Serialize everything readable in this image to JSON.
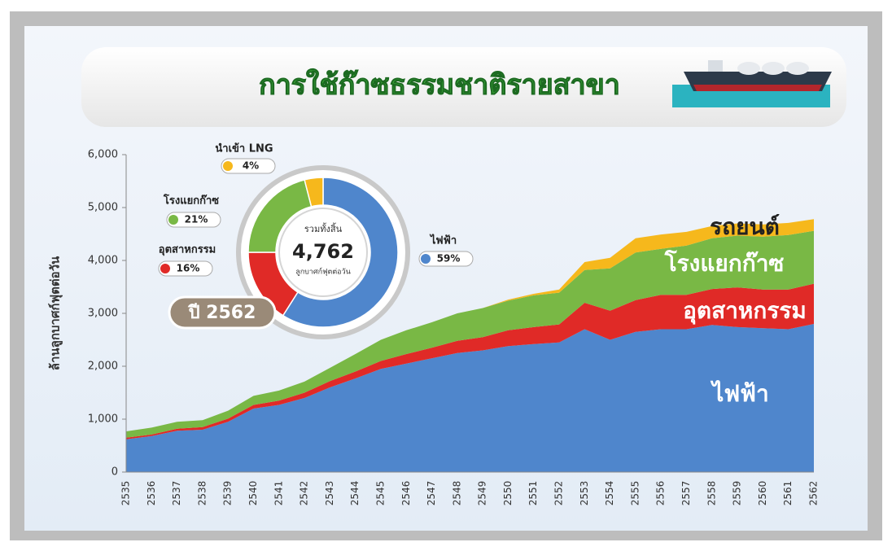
{
  "chart_data": [
    {
      "type": "stacked-area",
      "title": "การใช้ก๊าซธรรมชาติรายสาขา",
      "y_label": "ล้านลูกบาศก์ฟุตต่อวัน",
      "categories": [
        "2535",
        "2536",
        "2537",
        "2538",
        "2539",
        "2540",
        "2541",
        "2542",
        "2543",
        "2544",
        "2545",
        "2546",
        "2547",
        "2548",
        "2549",
        "2550",
        "2551",
        "2552",
        "2553",
        "2554",
        "2555",
        "2556",
        "2557",
        "2558",
        "2559",
        "2560",
        "2561",
        "2562"
      ],
      "series": [
        {
          "name": "ไฟฟ้า",
          "color": "#4f86cc",
          "values": [
            620,
            680,
            780,
            800,
            950,
            1200,
            1270,
            1400,
            1600,
            1770,
            1950,
            2050,
            2150,
            2250,
            2300,
            2380,
            2420,
            2450,
            2700,
            2500,
            2650,
            2700,
            2700,
            2780,
            2740,
            2720,
            2700,
            2800
          ]
        },
        {
          "name": "อุตสาหกรรม",
          "color": "#e02a27",
          "values": [
            30,
            30,
            40,
            50,
            60,
            70,
            80,
            100,
            120,
            130,
            150,
            180,
            200,
            230,
            250,
            300,
            320,
            340,
            500,
            550,
            600,
            650,
            650,
            680,
            750,
            730,
            750,
            760
          ]
        },
        {
          "name": "โรงแยกก๊าซ",
          "color": "#79b845",
          "values": [
            120,
            130,
            130,
            130,
            150,
            170,
            190,
            210,
            250,
            330,
            400,
            450,
            480,
            520,
            550,
            560,
            600,
            600,
            620,
            800,
            900,
            870,
            930,
            960,
            980,
            1000,
            1030,
            1000
          ]
        },
        {
          "name": "รถยนต์",
          "color": "#f6b81c",
          "values": [
            0,
            0,
            0,
            0,
            0,
            0,
            0,
            0,
            0,
            0,
            0,
            0,
            0,
            0,
            0,
            20,
            30,
            60,
            150,
            200,
            270,
            270,
            260,
            230,
            230,
            230,
            230,
            220
          ]
        }
      ],
      "ylim": [
        0,
        6000
      ],
      "yticks": [
        0,
        {
          "value": 1000,
          "label": "1,000"
        },
        {
          "value": 2000,
          "label": "2,000"
        },
        {
          "value": 3000,
          "label": "3,000"
        },
        {
          "value": 4000,
          "label": "4,000"
        },
        {
          "value": 5000,
          "label": "5,000"
        },
        {
          "value": 6000,
          "label": "6,000"
        }
      ]
    },
    {
      "type": "donut",
      "categories": [
        "ไฟฟ้า",
        "อุตสาหกรรม",
        "โรงแยกก๊าซ",
        "นำเข้า LNG"
      ],
      "values": [
        59,
        16,
        21,
        4
      ],
      "value_labels": [
        "59%",
        "16%",
        "21%",
        "4%"
      ],
      "colors": [
        "#4f86cc",
        "#e02a27",
        "#79b845",
        "#f6b81c"
      ],
      "center_title": "รวมทั้งสิ้น",
      "total": 4762,
      "total_label": "4,762",
      "unit": "ลูกบาศก์ฟุตต่อวัน",
      "year_label": "ปี 2562"
    }
  ]
}
